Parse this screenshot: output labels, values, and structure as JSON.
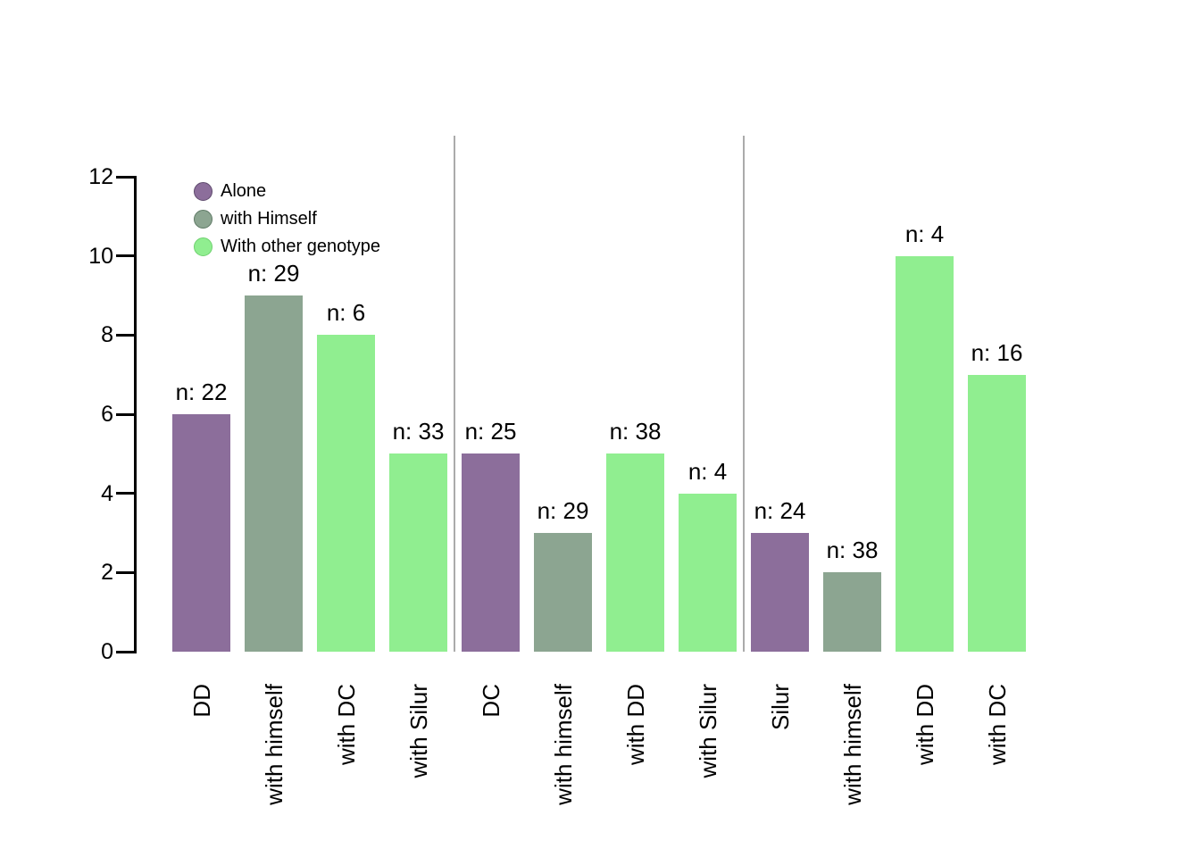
{
  "chart_data": {
    "type": "bar",
    "title": "",
    "xlabel": "",
    "ylabel": "",
    "ylim": [
      0,
      12
    ],
    "yticks": [
      0,
      2,
      4,
      6,
      8,
      10,
      12
    ],
    "grid": false,
    "legend_position": "top-left",
    "categories": [
      "DD",
      "with himself",
      "with DC",
      "with Silur",
      "DC",
      "with himself",
      "with DD",
      "with Silur",
      "Silur",
      "with himself",
      "with DD",
      "with DC"
    ],
    "values": [
      6,
      9,
      8,
      5,
      5,
      3,
      5,
      4,
      3,
      2,
      10,
      7
    ],
    "bar_labels": [
      "n: 22",
      "n: 29",
      "n: 6",
      "n: 33",
      "n: 25",
      "n: 29",
      "n: 38",
      "n: 4",
      "n: 24",
      "n: 38",
      "n: 4",
      "n: 16"
    ],
    "n_values": [
      22,
      29,
      6,
      33,
      25,
      29,
      38,
      4,
      24,
      38,
      4,
      16
    ],
    "series_index_per_bar": [
      0,
      1,
      2,
      2,
      0,
      1,
      2,
      2,
      0,
      1,
      2,
      2
    ],
    "group_separators_after": [
      3,
      7
    ],
    "groups": [
      {
        "name": "DD",
        "bars": [
          "DD",
          "with himself",
          "with DC",
          "with Silur"
        ]
      },
      {
        "name": "DC",
        "bars": [
          "DC",
          "with himself",
          "with DD",
          "with Silur"
        ]
      },
      {
        "name": "Silur",
        "bars": [
          "Silur",
          "with himself",
          "with DD",
          "with DC"
        ]
      }
    ],
    "legend": [
      {
        "label": "Alone",
        "color": "#8C6E9B",
        "border_color": "#5e4a6d"
      },
      {
        "label": "with Himself",
        "color": "#8CA591",
        "border_color": "#5f7a66"
      },
      {
        "label": "With other genotype",
        "color": "#90EE90",
        "border_color": "#6fd16f"
      }
    ],
    "colors": {
      "axis": "#000000",
      "text": "#000000",
      "separator": "#ababab",
      "background": "#ffffff"
    }
  }
}
